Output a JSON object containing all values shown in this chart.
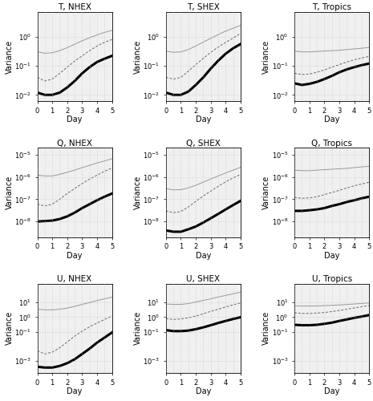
{
  "titles": [
    [
      "T, NHEX",
      "T, SHEX",
      "T, Tropics"
    ],
    [
      "Q, NHEX",
      "Q, SHEX",
      "Q, Tropics"
    ],
    [
      "U, NHEX",
      "U, SHEX",
      "U, Tropics"
    ]
  ],
  "xlabel": "Day",
  "ylabel": "Variance",
  "x": [
    0,
    0.5,
    1,
    1.5,
    2,
    2.5,
    3,
    3.5,
    4,
    4.5,
    5
  ],
  "rows": [
    {
      "ylim": [
        0.006,
        7
      ],
      "yticks": [
        -2,
        -1,
        0
      ],
      "panels": [
        {
          "thick": [
            0.012,
            0.01,
            0.01,
            0.012,
            0.018,
            0.03,
            0.055,
            0.09,
            0.135,
            0.175,
            0.22
          ],
          "dashed": [
            0.04,
            0.03,
            0.035,
            0.055,
            0.09,
            0.145,
            0.22,
            0.33,
            0.48,
            0.64,
            0.8
          ],
          "thin": [
            0.3,
            0.27,
            0.28,
            0.33,
            0.42,
            0.55,
            0.72,
            0.92,
            1.15,
            1.4,
            1.65
          ]
        },
        {
          "thick": [
            0.012,
            0.01,
            0.01,
            0.013,
            0.022,
            0.04,
            0.08,
            0.15,
            0.26,
            0.4,
            0.56
          ],
          "dashed": [
            0.04,
            0.035,
            0.04,
            0.065,
            0.11,
            0.18,
            0.29,
            0.44,
            0.64,
            0.9,
            1.3
          ],
          "thin": [
            0.32,
            0.29,
            0.3,
            0.36,
            0.48,
            0.65,
            0.88,
            1.18,
            1.55,
            1.95,
            2.45
          ]
        },
        {
          "thick": [
            0.025,
            0.022,
            0.024,
            0.028,
            0.035,
            0.045,
            0.06,
            0.075,
            0.09,
            0.105,
            0.12
          ],
          "dashed": [
            0.055,
            0.05,
            0.052,
            0.06,
            0.072,
            0.09,
            0.11,
            0.135,
            0.16,
            0.185,
            0.21
          ],
          "thin": [
            0.32,
            0.3,
            0.3,
            0.31,
            0.32,
            0.33,
            0.34,
            0.36,
            0.38,
            0.4,
            0.43
          ]
        }
      ]
    },
    {
      "ylim": [
        2e-09,
        2e-05
      ],
      "yticks": [
        -8,
        -7,
        -6,
        -5
      ],
      "panels": [
        {
          "thick": [
            1e-08,
            1.05e-08,
            1.1e-08,
            1.3e-08,
            1.7e-08,
            2.5e-08,
            4e-08,
            6e-08,
            9e-08,
            1.3e-07,
            1.8e-07
          ],
          "dashed": [
            6e-08,
            5e-08,
            6e-08,
            1e-07,
            1.8e-07,
            3e-07,
            5e-07,
            8e-07,
            1.2e-06,
            1.8e-06,
            2.5e-06
          ],
          "thin": [
            1.2e-06,
            1.1e-06,
            1.1e-06,
            1.3e-06,
            1.6e-06,
            2e-06,
            2.6e-06,
            3.3e-06,
            4.2e-06,
            5.2e-06,
            6.5e-06
          ]
        },
        {
          "thick": [
            4e-09,
            3.5e-09,
            3.5e-09,
            4.5e-09,
            6e-09,
            9e-09,
            1.4e-08,
            2.2e-08,
            3.5e-08,
            5.5e-08,
            8.5e-08
          ],
          "dashed": [
            3e-08,
            2.5e-08,
            2.8e-08,
            4.5e-08,
            8e-08,
            1.4e-07,
            2.3e-07,
            3.8e-07,
            6e-07,
            9e-07,
            1.3e-06
          ],
          "thin": [
            3e-07,
            2.6e-07,
            2.7e-07,
            3.2e-07,
            4.2e-07,
            5.8e-07,
            8e-07,
            1.1e-06,
            1.5e-06,
            2e-06,
            2.7e-06
          ]
        },
        {
          "thick": [
            3e-08,
            3e-08,
            3.2e-08,
            3.5e-08,
            4e-08,
            5e-08,
            6e-08,
            7.5e-08,
            9e-08,
            1.1e-07,
            1.3e-07
          ],
          "dashed": [
            1.2e-07,
            1.1e-07,
            1.15e-07,
            1.3e-07,
            1.6e-07,
            2e-07,
            2.5e-07,
            3.2e-07,
            4e-07,
            4.8e-07,
            5.8e-07
          ],
          "thin": [
            2e-06,
            1.9e-06,
            1.9e-06,
            2e-06,
            2.1e-06,
            2.2e-06,
            2.3e-06,
            2.4e-06,
            2.6e-06,
            2.8e-06,
            3e-06
          ]
        }
      ]
    },
    {
      "ylim": [
        0.00015,
        200
      ],
      "yticks": [
        -3,
        -1,
        0,
        1
      ],
      "panels": [
        {
          "thick": [
            0.0004,
            0.00035,
            0.00035,
            0.00045,
            0.0007,
            0.0013,
            0.003,
            0.007,
            0.018,
            0.04,
            0.09
          ],
          "dashed": [
            0.005,
            0.003,
            0.004,
            0.008,
            0.02,
            0.05,
            0.11,
            0.22,
            0.4,
            0.7,
            1.2
          ],
          "thin": [
            3.5,
            3.2,
            3.2,
            3.5,
            4.2,
            5.5,
            7.5,
            10,
            14,
            18,
            24
          ]
        },
        {
          "thick": [
            0.13,
            0.11,
            0.11,
            0.12,
            0.15,
            0.2,
            0.28,
            0.4,
            0.55,
            0.75,
            1.0
          ],
          "dashed": [
            0.8,
            0.7,
            0.75,
            0.9,
            1.2,
            1.7,
            2.5,
            3.5,
            5,
            7,
            9.5
          ],
          "thin": [
            8,
            7.5,
            7.5,
            8.5,
            11,
            14,
            18,
            24,
            31,
            40,
            52
          ]
        },
        {
          "thick": [
            0.3,
            0.28,
            0.28,
            0.3,
            0.35,
            0.42,
            0.55,
            0.7,
            0.9,
            1.1,
            1.4
          ],
          "dashed": [
            2.0,
            1.8,
            1.8,
            1.9,
            2.1,
            2.4,
            2.9,
            3.5,
            4.3,
            5.2,
            6.3
          ],
          "thin": [
            6,
            5.8,
            5.8,
            5.9,
            6.2,
            6.5,
            6.9,
            7.4,
            8.0,
            8.7,
            9.5
          ]
        }
      ]
    }
  ],
  "line_colors": {
    "thick": "#000000",
    "dashed": "#666666",
    "thin": "#999999"
  },
  "bg_color": "#ffffff",
  "grid_color": "#bbbbbb",
  "title_fontsize": 7.5,
  "label_fontsize": 7,
  "tick_fontsize": 6
}
